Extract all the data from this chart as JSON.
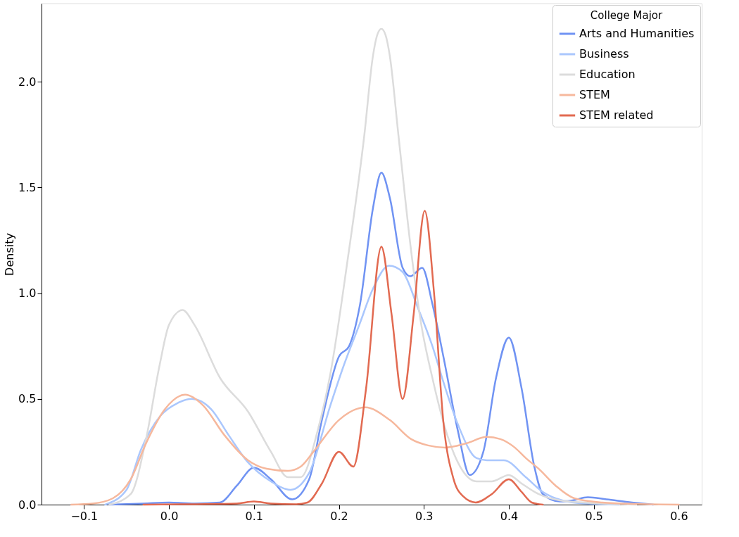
{
  "chart_data": {
    "type": "line",
    "ylabel": "Density",
    "legend_title": "College Major",
    "legend": "top right",
    "grid": false,
    "line_style": "solid",
    "marker": "none",
    "xlim": [
      -0.15,
      0.627
    ],
    "ylim": [
      0,
      2.37
    ],
    "xticks": [
      {
        "value": -0.1,
        "label": "−0.1"
      },
      {
        "value": 0,
        "label": "0.0"
      },
      0.1,
      0.2,
      0.3,
      0.4,
      0.5,
      0.6
    ],
    "yticks": [
      {
        "value": 0,
        "label": "0.0"
      },
      0.5,
      {
        "value": 1,
        "label": "1.0"
      },
      1.5,
      {
        "value": 2,
        "label": "2.0"
      }
    ],
    "series": [
      {
        "name": "Arts and Humanities",
        "color": "#7093f3",
        "x": [
          -0.07,
          -0.03,
          0.0,
          0.03,
          0.06,
          0.08,
          0.1,
          0.12,
          0.145,
          0.165,
          0.18,
          0.2,
          0.212,
          0.225,
          0.24,
          0.25,
          0.26,
          0.275,
          0.284,
          0.298,
          0.31,
          0.323,
          0.34,
          0.354,
          0.37,
          0.385,
          0.4,
          0.415,
          0.43,
          0.44,
          0.46,
          0.475,
          0.493,
          0.515,
          0.545,
          0.57
        ],
        "values": [
          0,
          0.005,
          0.01,
          0.005,
          0.01,
          0.09,
          0.175,
          0.12,
          0.025,
          0.12,
          0.4,
          0.7,
          0.75,
          0.95,
          1.4,
          1.57,
          1.45,
          1.12,
          1.08,
          1.12,
          0.95,
          0.7,
          0.35,
          0.14,
          0.25,
          0.6,
          0.79,
          0.55,
          0.18,
          0.05,
          0.015,
          0.02,
          0.035,
          0.025,
          0.01,
          0
        ]
      },
      {
        "name": "Business",
        "color": "#aac7fd",
        "x": [
          -0.075,
          -0.05,
          -0.033,
          -0.01,
          0.01,
          0.027,
          0.05,
          0.07,
          0.093,
          0.12,
          0.143,
          0.165,
          0.19,
          0.205,
          0.224,
          0.24,
          0.259,
          0.275,
          0.293,
          0.31,
          0.323,
          0.34,
          0.362,
          0.374,
          0.394,
          0.42,
          0.44,
          0.463,
          0.49,
          0.53
        ],
        "values": [
          0,
          0.07,
          0.26,
          0.42,
          0.48,
          0.5,
          0.45,
          0.33,
          0.2,
          0.11,
          0.07,
          0.15,
          0.47,
          0.65,
          0.85,
          1.02,
          1.13,
          1.1,
          0.93,
          0.75,
          0.58,
          0.38,
          0.22,
          0.21,
          0.21,
          0.13,
          0.06,
          0.02,
          0.005,
          0
        ]
      },
      {
        "name": "Education",
        "color": "#dcdcdc",
        "x": [
          -0.07,
          -0.045,
          -0.027,
          -0.011,
          0.0,
          0.016,
          0.03,
          0.06,
          0.093,
          0.12,
          0.14,
          0.155,
          0.175,
          0.19,
          0.21,
          0.23,
          0.24,
          0.245,
          0.25,
          0.255,
          0.26,
          0.27,
          0.285,
          0.297,
          0.31,
          0.323,
          0.34,
          0.362,
          0.38,
          0.4,
          0.415,
          0.435,
          0.46,
          0.49,
          0.52,
          0.55
        ],
        "values": [
          0,
          0.05,
          0.31,
          0.66,
          0.85,
          0.92,
          0.85,
          0.6,
          0.44,
          0.25,
          0.13,
          0.13,
          0.35,
          0.62,
          1.15,
          1.75,
          2.12,
          2.22,
          2.25,
          2.22,
          2.12,
          1.75,
          1.2,
          0.85,
          0.6,
          0.39,
          0.2,
          0.11,
          0.11,
          0.14,
          0.1,
          0.05,
          0.02,
          0.01,
          0.003,
          0
        ]
      },
      {
        "name": "STEM",
        "color": "#f6b89d",
        "x": [
          -0.115,
          -0.09,
          -0.066,
          -0.045,
          -0.027,
          -0.005,
          0.019,
          0.04,
          0.065,
          0.093,
          0.115,
          0.14,
          0.155,
          0.17,
          0.2,
          0.231,
          0.26,
          0.285,
          0.305,
          0.325,
          0.35,
          0.374,
          0.39,
          0.407,
          0.42,
          0.435,
          0.455,
          0.477,
          0.51,
          0.55,
          0.6
        ],
        "values": [
          0,
          0.005,
          0.03,
          0.12,
          0.29,
          0.45,
          0.52,
          0.47,
          0.33,
          0.21,
          0.17,
          0.16,
          0.18,
          0.25,
          0.4,
          0.46,
          0.4,
          0.31,
          0.28,
          0.27,
          0.29,
          0.32,
          0.31,
          0.27,
          0.22,
          0.17,
          0.09,
          0.03,
          0.01,
          0.003,
          0
        ]
      },
      {
        "name": "STEM related",
        "color": "#e26a51",
        "x": [
          -0.03,
          0.03,
          0.08,
          0.1,
          0.12,
          0.15,
          0.163,
          0.18,
          0.2,
          0.217,
          0.232,
          0.25,
          0.262,
          0.275,
          0.288,
          0.301,
          0.312,
          0.323,
          0.335,
          0.346,
          0.361,
          0.38,
          0.4,
          0.415,
          0.427,
          0.44
        ],
        "values": [
          0,
          0.002,
          0.005,
          0.015,
          0.005,
          0.002,
          0.01,
          0.1,
          0.25,
          0.18,
          0.55,
          1.22,
          0.9,
          0.5,
          0.9,
          1.39,
          1.0,
          0.39,
          0.12,
          0.04,
          0.01,
          0.05,
          0.12,
          0.06,
          0.01,
          0
        ]
      }
    ]
  }
}
